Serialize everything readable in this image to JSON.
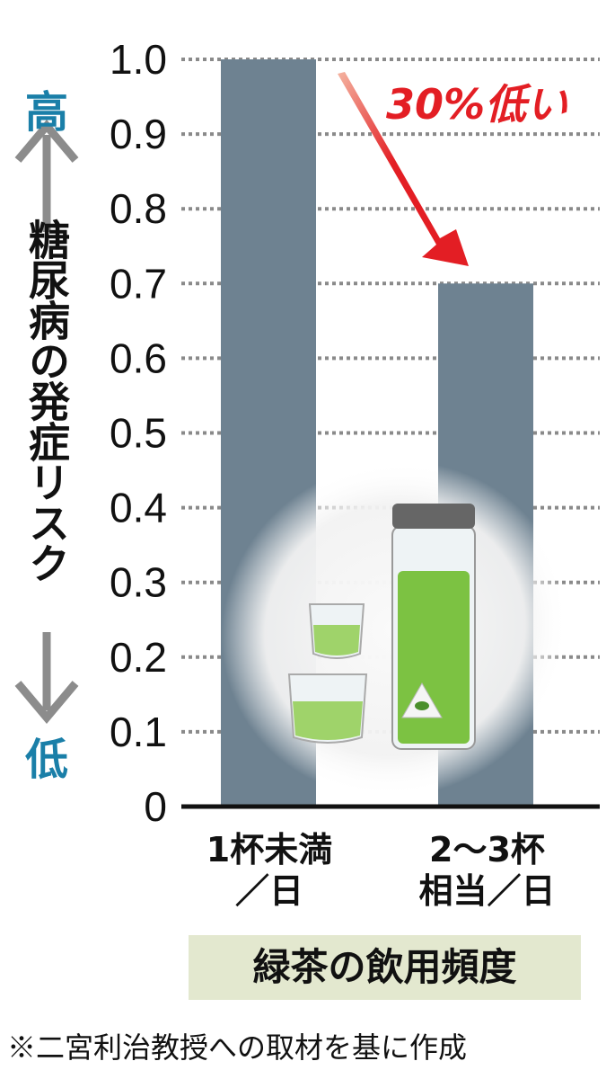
{
  "chart_data": {
    "type": "bar",
    "categories": [
      "1杯未満／日",
      "2〜3杯相当／日"
    ],
    "category_lines": [
      [
        "1杯未満",
        "／日"
      ],
      [
        "2〜3杯",
        "相当／日"
      ]
    ],
    "values": [
      1.0,
      0.7
    ],
    "ylabel": "糖尿病の発症リスク",
    "ylabel_high": "高",
    "ylabel_low": "低",
    "xlabel": "緑茶の飲用頻度",
    "ylim": [
      0,
      1.0
    ],
    "yticks": [
      "0",
      "0.1",
      "0.2",
      "0.3",
      "0.4",
      "0.5",
      "0.6",
      "0.7",
      "0.8",
      "0.9",
      "1.0"
    ],
    "grid": true,
    "annotation": "30%低い",
    "footnote": "※二宮利治教授への取材を基に作成",
    "colors": {
      "bar": "#6e8291",
      "grid": "#8a8a8a",
      "annotation": "#e31e24",
      "axis_accent": "#1a7fa8",
      "xlabel_bg": "#e3e8cf",
      "tea": "#7cc242"
    }
  }
}
